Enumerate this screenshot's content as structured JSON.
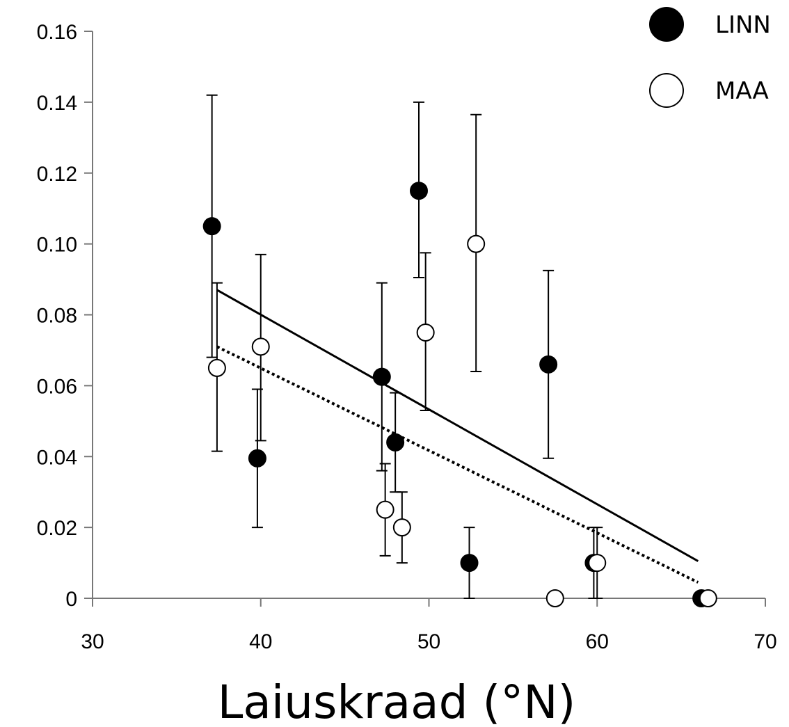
{
  "chart_data": {
    "type": "scatter",
    "title": "",
    "xlabel": "Laiuskraad (°N)",
    "ylabel": "",
    "xlim": [
      30,
      70
    ],
    "ylim": [
      0,
      0.16
    ],
    "x_ticks": [
      30,
      40,
      50,
      60,
      70
    ],
    "x_tick_labels": [
      "30",
      "40",
      "50",
      "60",
      "70"
    ],
    "y_ticks": [
      0,
      0.02,
      0.04,
      0.06,
      0.08,
      0.1,
      0.12,
      0.14,
      0.16
    ],
    "y_tick_labels": [
      "0",
      "0.02",
      "0.04",
      "0.06",
      "0.08",
      "0.10",
      "0.12",
      "0.14",
      "0.16"
    ],
    "grid": false,
    "legend_position": "top-right",
    "series": [
      {
        "name": "LINN",
        "marker": "filled-circle",
        "color": "#000000",
        "points": [
          {
            "x": 37.1,
            "y": 0.105,
            "err_low": 0.068,
            "err_high": 0.142
          },
          {
            "x": 39.8,
            "y": 0.0395,
            "err_low": 0.02,
            "err_high": 0.059
          },
          {
            "x": 47.2,
            "y": 0.0625,
            "err_low": 0.036,
            "err_high": 0.089
          },
          {
            "x": 48.0,
            "y": 0.044,
            "err_low": 0.03,
            "err_high": 0.058
          },
          {
            "x": 49.4,
            "y": 0.115,
            "err_low": 0.0905,
            "err_high": 0.14
          },
          {
            "x": 52.4,
            "y": 0.01,
            "err_low": 0.0,
            "err_high": 0.02
          },
          {
            "x": 57.1,
            "y": 0.066,
            "err_low": 0.0395,
            "err_high": 0.0925
          },
          {
            "x": 59.8,
            "y": 0.01,
            "err_low": 0.0,
            "err_high": 0.02
          },
          {
            "x": 66.2,
            "y": 0.0,
            "err_low": 0.0,
            "err_high": 0.0
          }
        ],
        "trendline": {
          "style": "solid",
          "x": [
            37.4,
            66.0
          ],
          "y": [
            0.087,
            0.0105
          ]
        }
      },
      {
        "name": "MAA",
        "marker": "open-circle",
        "color": "#000000",
        "points": [
          {
            "x": 37.4,
            "y": 0.065,
            "err_low": 0.0415,
            "err_high": 0.089
          },
          {
            "x": 40.0,
            "y": 0.071,
            "err_low": 0.0445,
            "err_high": 0.097
          },
          {
            "x": 47.4,
            "y": 0.025,
            "err_low": 0.012,
            "err_high": 0.038
          },
          {
            "x": 48.4,
            "y": 0.02,
            "err_low": 0.01,
            "err_high": 0.03
          },
          {
            "x": 49.8,
            "y": 0.075,
            "err_low": 0.053,
            "err_high": 0.0975
          },
          {
            "x": 52.8,
            "y": 0.1,
            "err_low": 0.064,
            "err_high": 0.1365
          },
          {
            "x": 57.5,
            "y": 0.0,
            "err_low": 0.0,
            "err_high": 0.0
          },
          {
            "x": 60.0,
            "y": 0.01,
            "err_low": 0.0,
            "err_high": 0.02
          },
          {
            "x": 66.6,
            "y": 0.0,
            "err_low": 0.0,
            "err_high": 0.0
          }
        ],
        "trendline": {
          "style": "dotted",
          "x": [
            37.4,
            66.0
          ],
          "y": [
            0.071,
            0.0045
          ]
        }
      }
    ]
  }
}
